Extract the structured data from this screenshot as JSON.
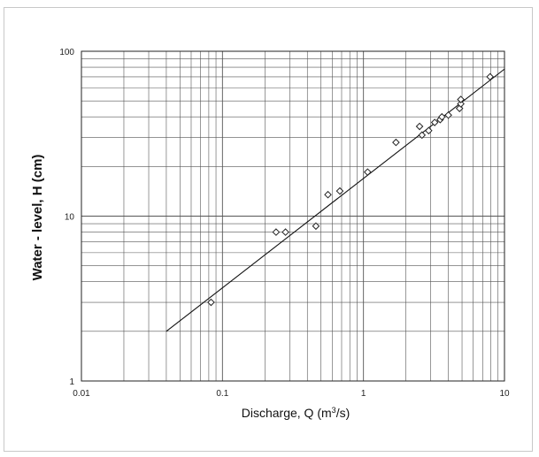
{
  "chart_data": {
    "type": "scatter",
    "x_scale": "log",
    "y_scale": "log",
    "xlim": [
      0.01,
      10
    ],
    "ylim": [
      1,
      100
    ],
    "grid": true,
    "xlabel": "Discharge, Q (m3/s)",
    "xlabel_parts": {
      "main": "Discharge, Q (m",
      "sup": "3",
      "tail": "/s)"
    },
    "ylabel": "Water - level, H (cm)",
    "x_tick_labels": [
      "0.01",
      "0.1",
      "1",
      "10"
    ],
    "y_tick_labels": [
      "1",
      "10",
      "100"
    ],
    "points": [
      {
        "x": 0.083,
        "y": 3.0
      },
      {
        "x": 0.24,
        "y": 8.0
      },
      {
        "x": 0.28,
        "y": 8.0
      },
      {
        "x": 0.46,
        "y": 8.7
      },
      {
        "x": 0.56,
        "y": 13.5
      },
      {
        "x": 0.68,
        "y": 14.2
      },
      {
        "x": 1.07,
        "y": 18.5
      },
      {
        "x": 1.7,
        "y": 28.0
      },
      {
        "x": 2.5,
        "y": 35.0
      },
      {
        "x": 2.6,
        "y": 31.0
      },
      {
        "x": 2.9,
        "y": 33.0
      },
      {
        "x": 3.2,
        "y": 37.0
      },
      {
        "x": 3.5,
        "y": 38.5
      },
      {
        "x": 3.6,
        "y": 40.0
      },
      {
        "x": 4.0,
        "y": 41.0
      },
      {
        "x": 4.8,
        "y": 45.0
      },
      {
        "x": 4.9,
        "y": 48.0
      },
      {
        "x": 4.9,
        "y": 51.0
      },
      {
        "x": 7.9,
        "y": 70.0
      }
    ],
    "fit_line": {
      "x": [
        0.04,
        10
      ],
      "y": [
        2.0,
        78.0
      ]
    },
    "marker": "open-diamond",
    "colors": {
      "marks": "#222222",
      "grid": "#555555",
      "frame": "#c8c8c8"
    }
  }
}
